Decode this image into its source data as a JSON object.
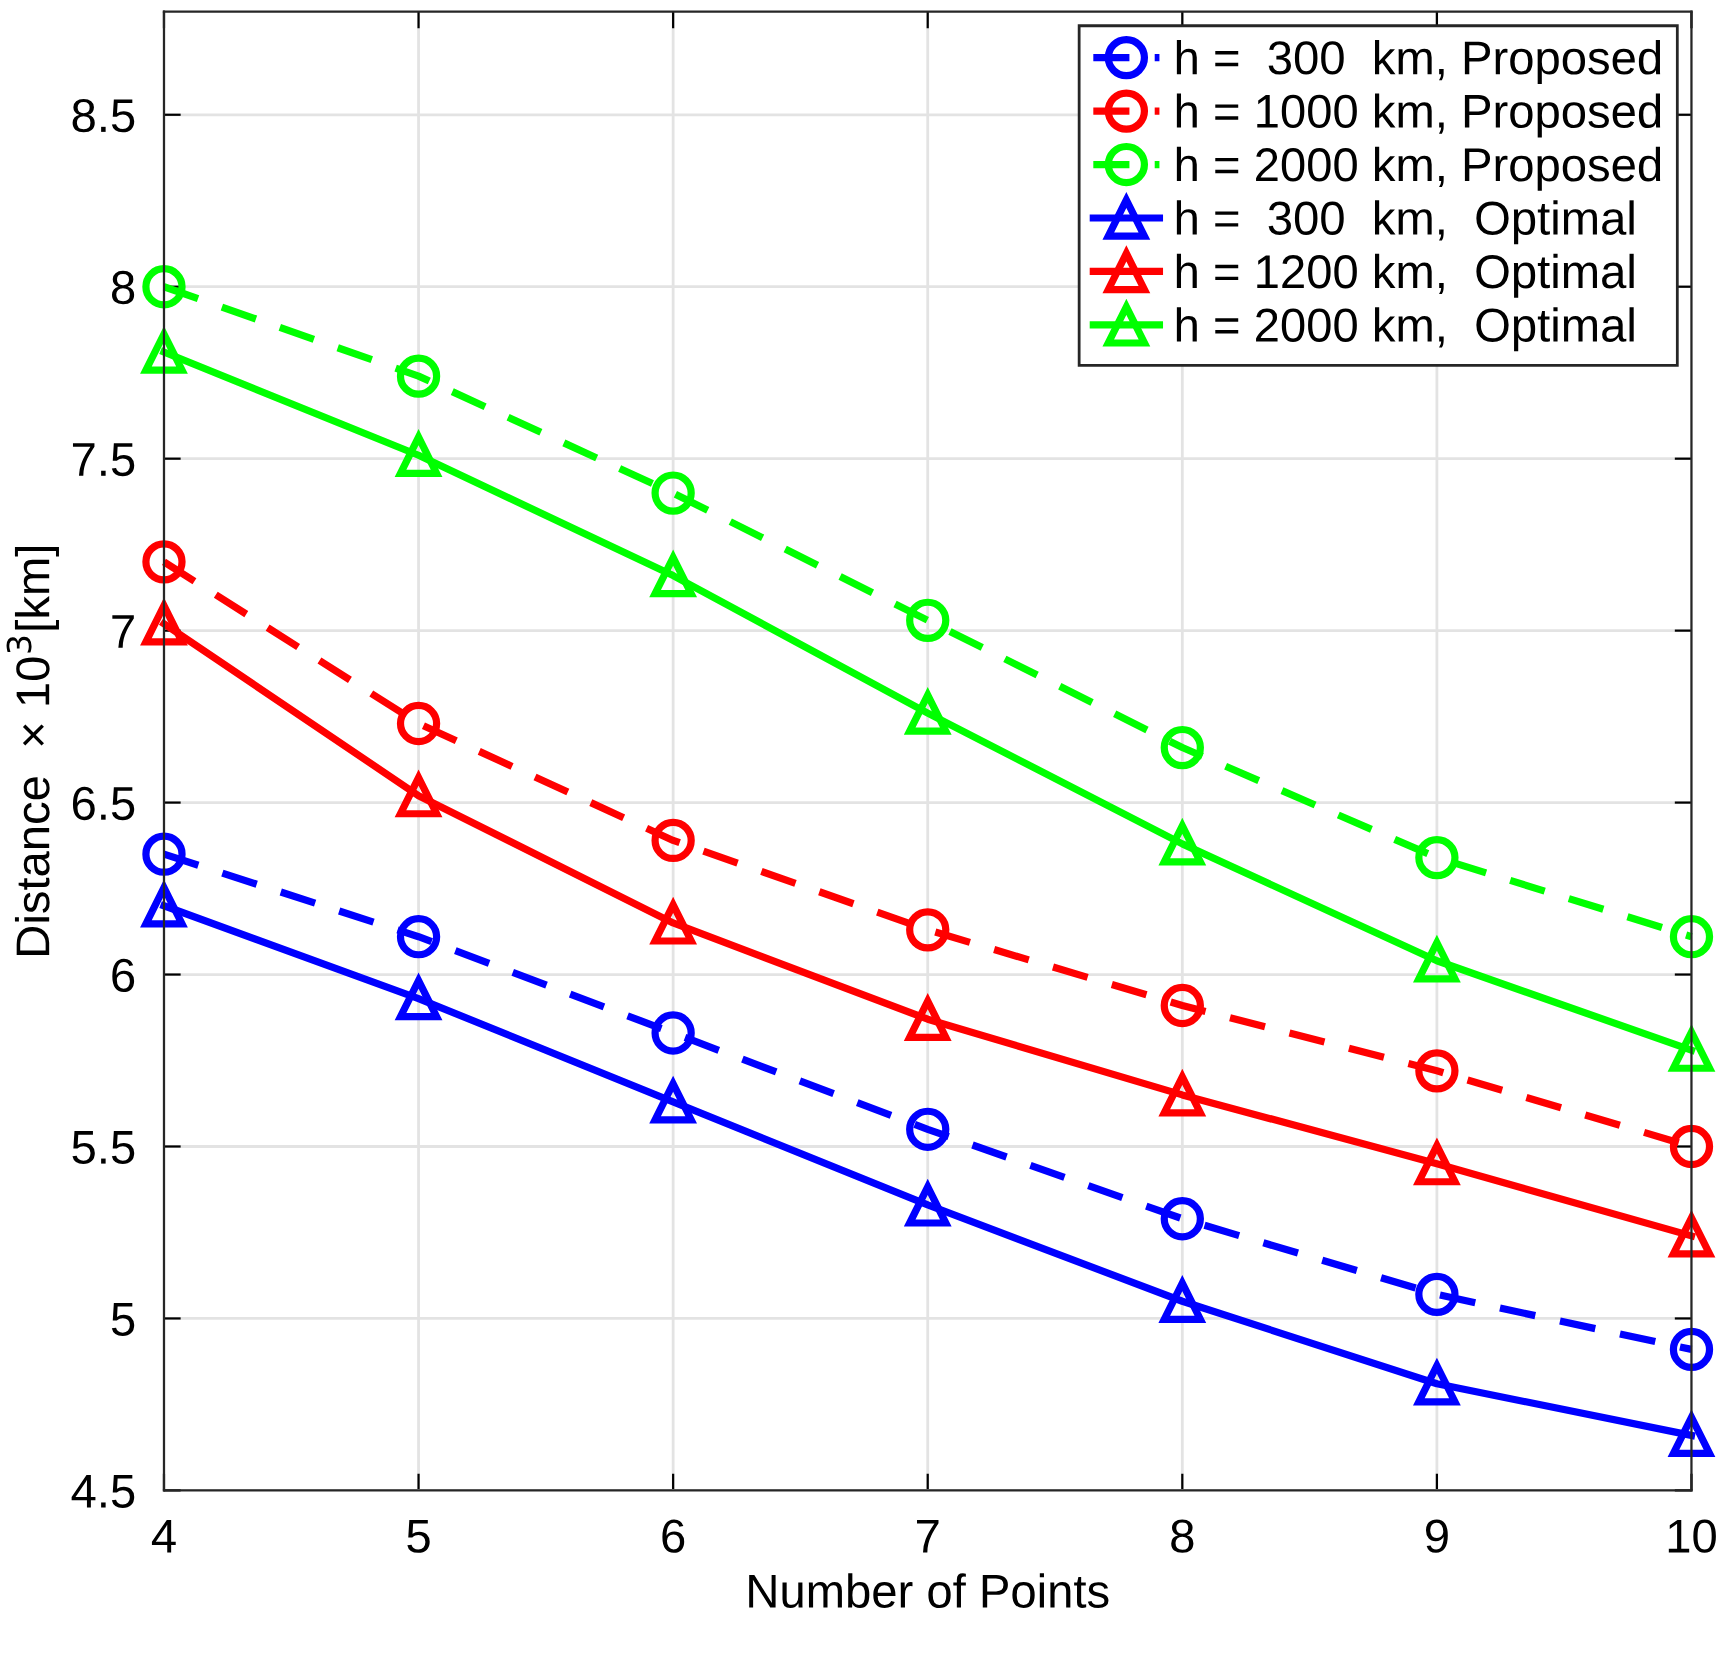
{
  "chart_data": {
    "type": "line",
    "xlabel": "Number of Points",
    "ylabel": "Distance  × 10$^{3}$[km]",
    "x": [
      4,
      5,
      6,
      7,
      8,
      9,
      10
    ],
    "series": [
      {
        "name": "h =  300  km, Proposed",
        "color": "#0000ff",
        "marker": "circle",
        "line_style": "dashed",
        "values": [
          6.35,
          6.11,
          5.83,
          5.55,
          5.29,
          5.07,
          4.91
        ]
      },
      {
        "name": "h = 1000 km, Proposed",
        "color": "#ff0000",
        "marker": "circle",
        "line_style": "dashed",
        "values": [
          7.2,
          6.73,
          6.39,
          6.13,
          5.91,
          5.72,
          5.5
        ]
      },
      {
        "name": "h = 2000 km, Proposed",
        "color": "#00ff00",
        "marker": "circle",
        "line_style": "dashed",
        "values": [
          8.0,
          7.74,
          7.4,
          7.03,
          6.66,
          6.34,
          6.11
        ]
      },
      {
        "name": "h =  300  km,  Optimal",
        "color": "#0000ff",
        "marker": "triangle",
        "line_style": "solid",
        "values": [
          6.2,
          5.93,
          5.63,
          5.33,
          5.05,
          4.81,
          4.66
        ]
      },
      {
        "name": "h = 1200 km,  Optimal",
        "color": "#ff0000",
        "marker": "triangle",
        "line_style": "solid",
        "values": [
          7.02,
          6.52,
          6.15,
          5.87,
          5.65,
          5.45,
          5.24
        ]
      },
      {
        "name": "h = 2000 km,  Optimal",
        "color": "#00ff00",
        "marker": "triangle",
        "line_style": "solid",
        "values": [
          7.81,
          7.51,
          7.16,
          6.76,
          6.38,
          6.04,
          5.78
        ]
      }
    ],
    "xlim": [
      4,
      10
    ],
    "xticks": [
      4,
      5,
      6,
      7,
      8,
      9,
      10
    ],
    "ylim": [
      4.5,
      8.8
    ],
    "yticks": [
      4.5,
      5,
      5.5,
      6,
      6.5,
      7,
      7.5,
      8,
      8.5
    ],
    "grid": true,
    "legend": "top right"
  }
}
